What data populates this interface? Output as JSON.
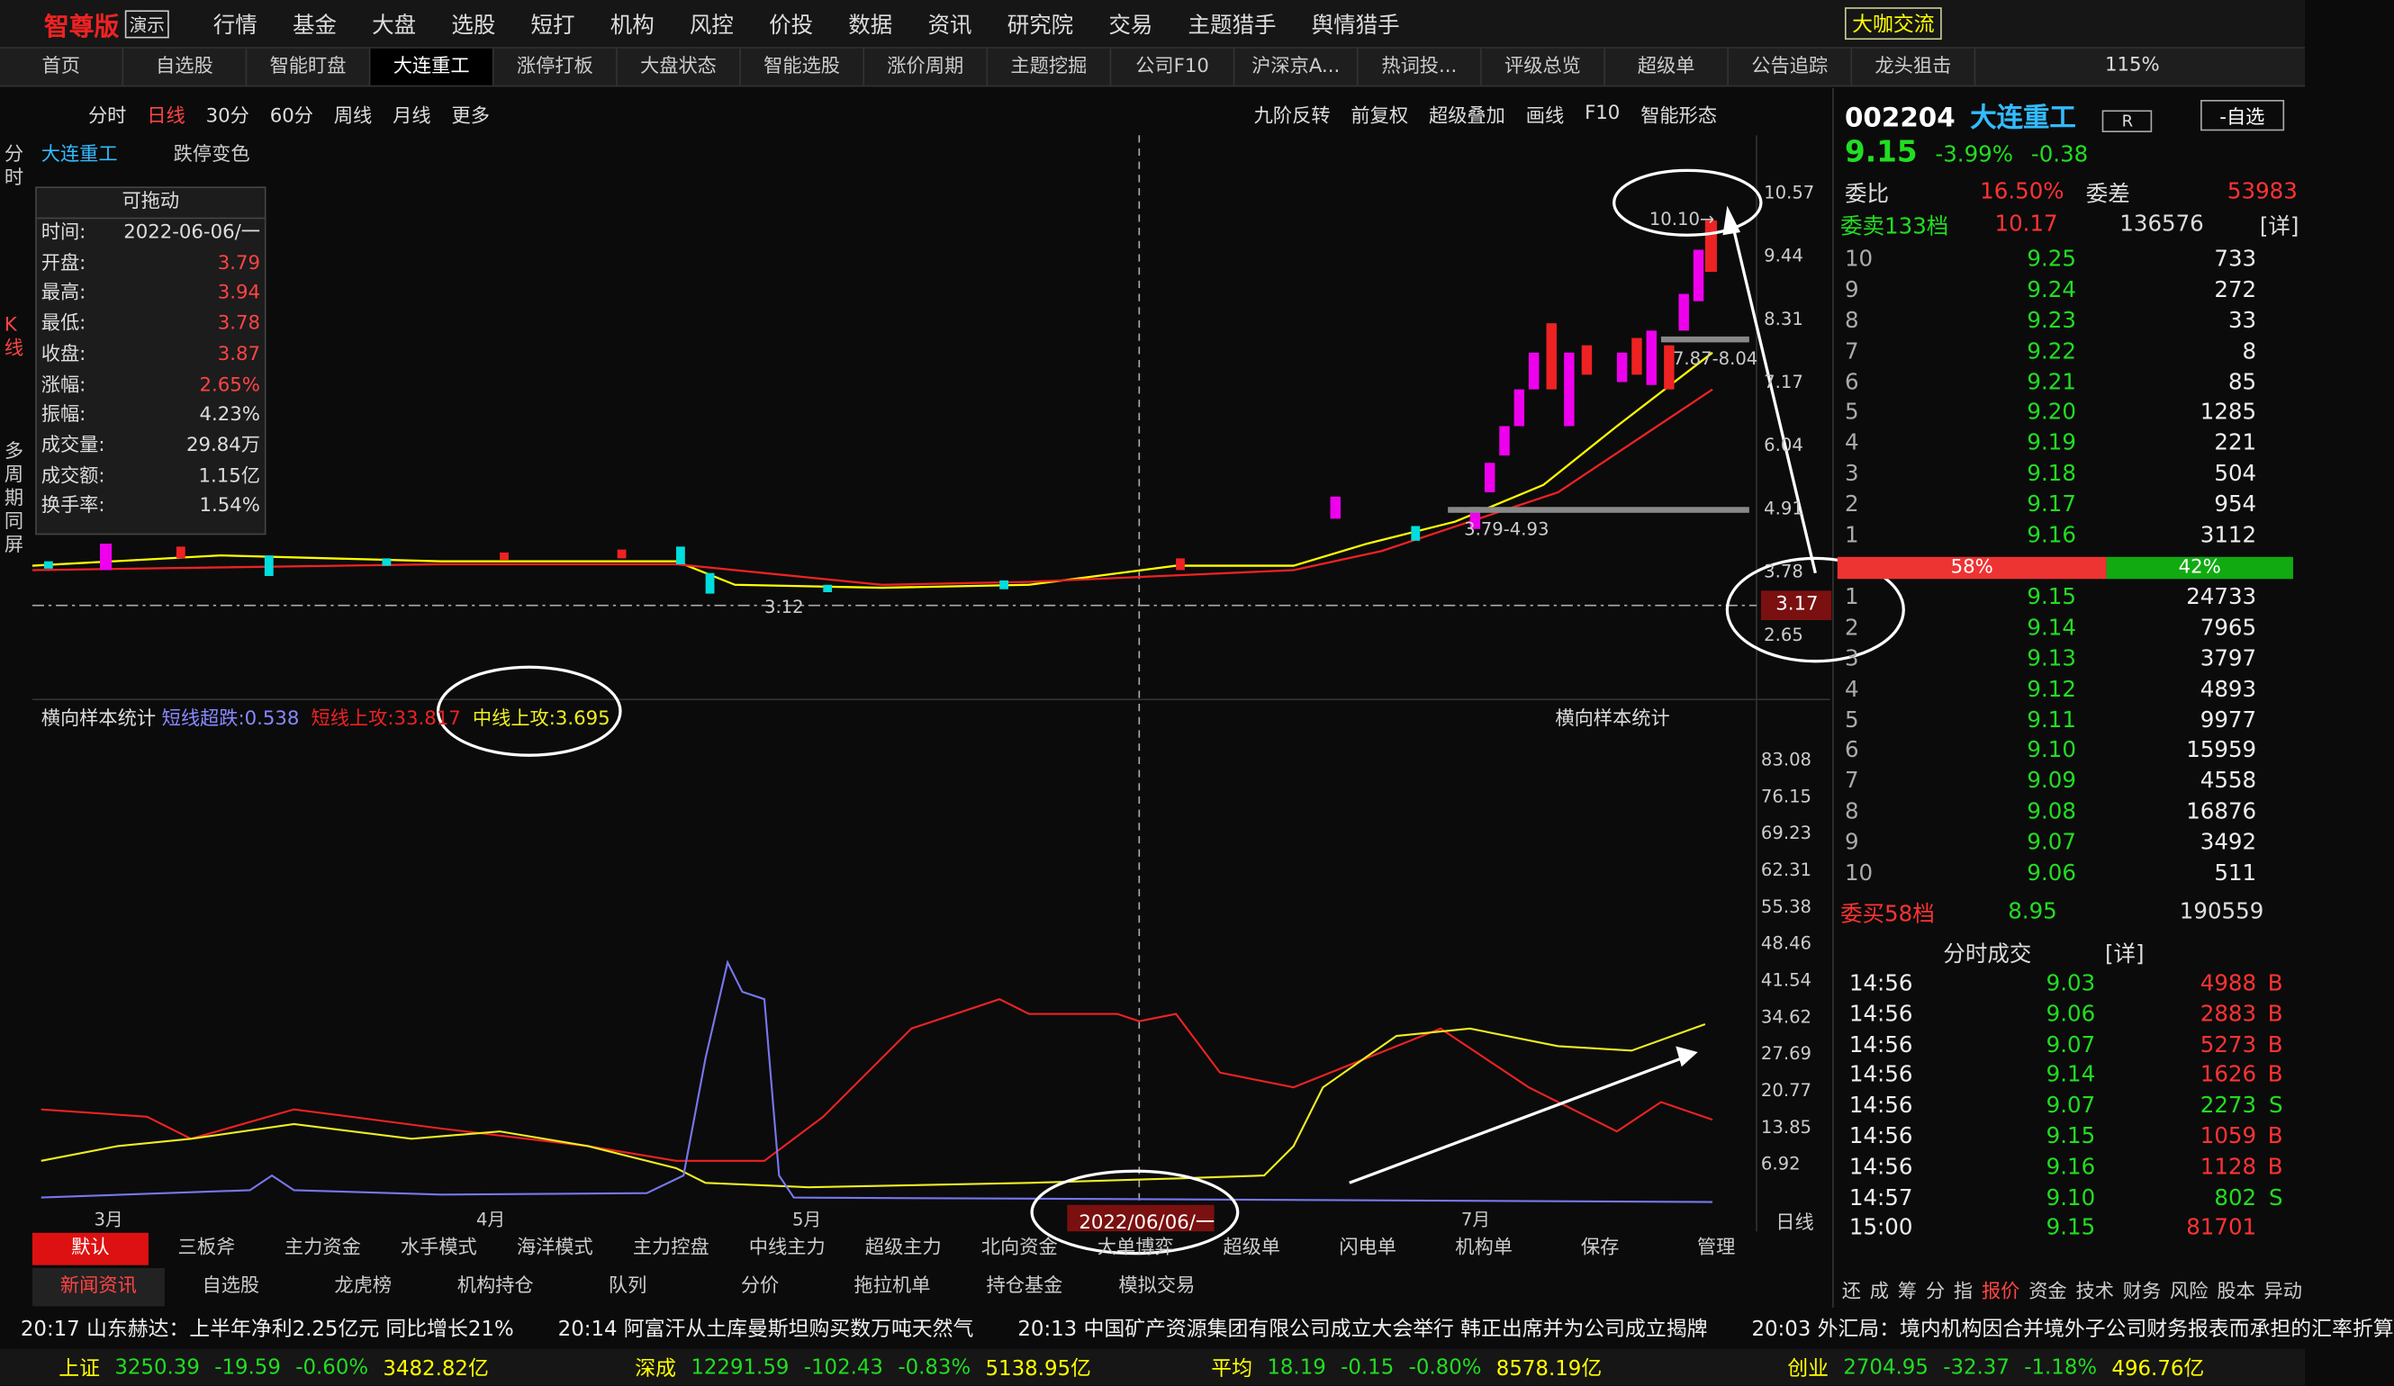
{
  "menu": {
    "logo": "智尊版",
    "demo": "演示",
    "items": [
      "行情",
      "基金",
      "大盘",
      "选股",
      "短打",
      "机构",
      "风控",
      "价投",
      "数据",
      "资讯",
      "研究院",
      "交易",
      "主题猎手",
      "舆情猎手"
    ],
    "right": "大咖交流"
  },
  "tabs": {
    "items": [
      "首页",
      "自选股",
      "智能盯盘",
      "大连重工",
      "涨停打板",
      "大盘状态",
      "智能选股",
      "涨价周期",
      "主题挖掘",
      "公司F10",
      "沪深京A...",
      "热词投...",
      "评级总览",
      "超级单",
      "公告追踪",
      "龙头狙击"
    ],
    "zoom": "115%"
  },
  "toolbar": {
    "periods": [
      "分时",
      "日线",
      "30分",
      "60分",
      "周线",
      "月线",
      "更多"
    ],
    "tools": [
      "九阶反转",
      "前复权",
      "超级叠加",
      "画线",
      "F10",
      "智能形态"
    ]
  },
  "side": [
    "分时",
    "K线",
    "多周期同屏"
  ],
  "kline": {
    "name": "大连重工",
    "option": "跌停变色",
    "price_axis": [
      "10.57",
      "9.44",
      "8.31",
      "7.17",
      "6.04",
      "4.91",
      "3.78",
      "3.17",
      "2.65"
    ],
    "annotations": {
      "high": "10.10→",
      "range_a": "7.87-8.04",
      "range_b": "3.79-4.93",
      "low": "3.12"
    }
  },
  "popup": {
    "title": "可拖动",
    "rows": [
      [
        "时间:",
        "2022-06-06/一"
      ],
      [
        "开盘:",
        "3.79"
      ],
      [
        "最高:",
        "3.94"
      ],
      [
        "最低:",
        "3.78"
      ],
      [
        "收盘:",
        "3.87"
      ],
      [
        "涨幅:",
        "2.65%"
      ],
      [
        "振幅:",
        "4.23%"
      ],
      [
        "成交量:",
        "29.84万"
      ],
      [
        "成交额:",
        "1.15亿"
      ],
      [
        "换手率:",
        "1.54%"
      ]
    ]
  },
  "indicator": {
    "title": "横向样本统计",
    "legend": [
      "短线超跌:0.538",
      "短线上攻:33.817",
      "中线上攻:3.695"
    ],
    "axis": [
      "83.08",
      "76.15",
      "69.23",
      "62.31",
      "55.38",
      "48.46",
      "41.54",
      "34.62",
      "27.69",
      "20.77",
      "13.85",
      "6.92"
    ],
    "x_labels": [
      "3月",
      "4月",
      "5月",
      "7月"
    ],
    "cursor_date": "2022/06/06/一",
    "period": "日线"
  },
  "bottom_tabs": [
    "默认",
    "三板斧",
    "主力资金",
    "水手模式",
    "海洋模式",
    "主力控盘",
    "中线主力",
    "超级主力",
    "北向资金",
    "大单博弈",
    "超级单",
    "闪电单",
    "机构单",
    "保存",
    "管理"
  ],
  "news_tabs": [
    "新闻资讯",
    "自选股",
    "龙虎榜",
    "机构持仓",
    "队列",
    "分价",
    "拖拉机单",
    "持仓基金",
    "模拟交易"
  ],
  "news": [
    "20:17 山东赫达：上半年净利2.25亿元 同比增长21%",
    "20:14 阿富汗从土库曼斯坦购买数万吨天然气",
    "20:13 中国矿产资源集团有限公司成立大会举行 韩正出席并为公司成立揭牌",
    "20:03 外汇局：境内机构因合并境外子公司财务报表而承担的汇率折算"
  ],
  "indices": [
    {
      "name": "上证",
      "price": "3250.39",
      "change": "-19.59",
      "pct": "-0.60%",
      "amount": "3482.82亿"
    },
    {
      "name": "深成",
      "price": "12291.59",
      "change": "-102.43",
      "pct": "-0.83%",
      "amount": "5138.95亿"
    },
    {
      "name": "平均",
      "price": "18.19",
      "change": "-0.15",
      "pct": "-0.80%",
      "amount": "8578.19亿"
    },
    {
      "name": "创业",
      "price": "2704.95",
      "change": "-32.37",
      "pct": "-1.18%",
      "amount": "496.76亿"
    }
  ],
  "quote": {
    "code": "002204",
    "name": "大连重工",
    "badge": "R",
    "watch": "-自选",
    "price": "9.15",
    "pct": "-3.99%",
    "change": "-0.38",
    "ratio_label": "委比",
    "ratio": "16.50%",
    "diff_label": "委差",
    "diff": "53983",
    "sell_total": {
      "label": "委卖133档",
      "price": "10.17",
      "volume": "136576",
      "detail": "[详]"
    },
    "sell": [
      [
        "10",
        "9.25",
        "733"
      ],
      [
        "9",
        "9.24",
        "272"
      ],
      [
        "8",
        "9.23",
        "33"
      ],
      [
        "7",
        "9.22",
        "8"
      ],
      [
        "6",
        "9.21",
        "85"
      ],
      [
        "5",
        "9.20",
        "1285"
      ],
      [
        "4",
        "9.19",
        "221"
      ],
      [
        "3",
        "9.18",
        "504"
      ],
      [
        "2",
        "9.17",
        "954"
      ],
      [
        "1",
        "9.16",
        "3112"
      ]
    ],
    "bar": [
      "58%",
      "42%"
    ],
    "buy": [
      [
        "1",
        "9.15",
        "24733"
      ],
      [
        "2",
        "9.14",
        "7965"
      ],
      [
        "3",
        "9.13",
        "3797"
      ],
      [
        "4",
        "9.12",
        "4893"
      ],
      [
        "5",
        "9.11",
        "9977"
      ],
      [
        "6",
        "9.10",
        "15959"
      ],
      [
        "7",
        "9.09",
        "4558"
      ],
      [
        "8",
        "9.08",
        "16876"
      ],
      [
        "9",
        "9.07",
        "3492"
      ],
      [
        "10",
        "9.06",
        "511"
      ]
    ],
    "buy_total": {
      "label": "委买58档",
      "price": "8.95",
      "volume": "190559"
    },
    "trades_title": "分时成交",
    "trades_detail": "[详]",
    "trades": [
      [
        "14:56",
        "9.03",
        "4988",
        "B"
      ],
      [
        "14:56",
        "9.06",
        "2883",
        "B"
      ],
      [
        "14:56",
        "9.07",
        "5273",
        "B"
      ],
      [
        "14:56",
        "9.14",
        "1626",
        "B"
      ],
      [
        "14:56",
        "9.07",
        "2273",
        "S"
      ],
      [
        "14:56",
        "9.15",
        "1059",
        "B"
      ],
      [
        "14:56",
        "9.16",
        "1128",
        "B"
      ],
      [
        "14:57",
        "9.10",
        "802",
        "S"
      ],
      [
        "15:00",
        "9.15",
        "81701"
      ]
    ],
    "tabs": [
      "还",
      "成",
      "筹",
      "分",
      "指",
      "报价",
      "资金",
      "技术",
      "财务",
      "风险",
      "股本",
      "异动"
    ]
  }
}
